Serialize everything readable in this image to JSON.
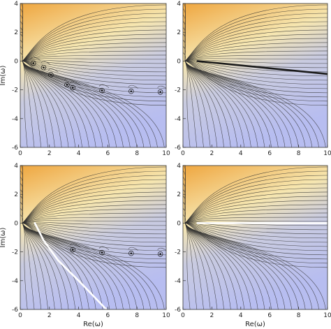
{
  "chart_data": [
    {
      "type": "contour",
      "panel": "top-left",
      "xlabel": "",
      "ylabel": "Im(ω)",
      "xlim": [
        0,
        10
      ],
      "ylim": [
        -6,
        4
      ],
      "x_ticks": [
        "0",
        "2",
        "4",
        "6",
        "8",
        "10"
      ],
      "y_ticks": [
        "4",
        "2",
        "0",
        "-2",
        "-4",
        "-6"
      ],
      "poles": [
        [
          0.9,
          -0.15
        ],
        [
          1.6,
          -0.45
        ],
        [
          2.1,
          -0.95
        ],
        [
          3.2,
          -1.65
        ],
        [
          3.6,
          -1.85
        ],
        [
          5.6,
          -2.05
        ],
        [
          7.6,
          -2.1
        ],
        [
          9.6,
          -2.15
        ]
      ],
      "cut": null,
      "gradient_colors": [
        "#efa63f",
        "#f6e6b0",
        "#c9cbe0",
        "#b7bdf0"
      ]
    },
    {
      "type": "contour",
      "panel": "top-right",
      "xlabel": "",
      "ylabel": "",
      "xlim": [
        0,
        10
      ],
      "ylim": [
        -6,
        4
      ],
      "x_ticks": [
        "0",
        "2",
        "4",
        "6",
        "8",
        "10"
      ],
      "y_ticks": [
        "4",
        "2",
        "0",
        "-2",
        "-4",
        "-6"
      ],
      "poles": [],
      "cut": {
        "points": [
          [
            1.0,
            0.0
          ],
          [
            10.0,
            -0.9
          ]
        ],
        "color": "#1a1a1a"
      },
      "gradient_colors": [
        "#efa63f",
        "#f6e6b0",
        "#c9cbe0",
        "#b7bdf0"
      ]
    },
    {
      "type": "contour",
      "panel": "bottom-left",
      "xlabel": "Re(ω)",
      "ylabel": "Im(ω)",
      "xlim": [
        0,
        10
      ],
      "ylim": [
        -6,
        4
      ],
      "x_ticks": [
        "0",
        "2",
        "4",
        "6",
        "8",
        "10"
      ],
      "y_ticks": [
        "4",
        "2",
        "0",
        "-2",
        "-4",
        "-6"
      ],
      "poles": [
        [
          3.6,
          -1.85
        ],
        [
          5.6,
          -2.05
        ],
        [
          7.6,
          -2.1
        ],
        [
          9.6,
          -2.15
        ]
      ],
      "cut": {
        "points": [
          [
            1.0,
            0.0
          ],
          [
            1.6,
            -1.2
          ],
          [
            2.6,
            -2.6
          ],
          [
            4.0,
            -4.0
          ],
          [
            5.9,
            -6.0
          ]
        ],
        "color": "#ffffff"
      },
      "gradient_colors": [
        "#efa63f",
        "#f6e6b0",
        "#c9cbe0",
        "#b7bdf0"
      ]
    },
    {
      "type": "contour",
      "panel": "bottom-right",
      "xlabel": "Re(ω)",
      "ylabel": "",
      "xlim": [
        0,
        10
      ],
      "ylim": [
        -6,
        4
      ],
      "x_ticks": [
        "0",
        "2",
        "4",
        "6",
        "8",
        "10"
      ],
      "y_ticks": [
        "4",
        "2",
        "0",
        "-2",
        "-4",
        "-6"
      ],
      "poles": [],
      "cut": {
        "points": [
          [
            1.0,
            0.0
          ],
          [
            10.0,
            0.0
          ]
        ],
        "color": "#ffffff"
      },
      "gradient_colors": [
        "#efa63f",
        "#f6e6b0",
        "#c9cbe0",
        "#b7bdf0"
      ]
    }
  ]
}
